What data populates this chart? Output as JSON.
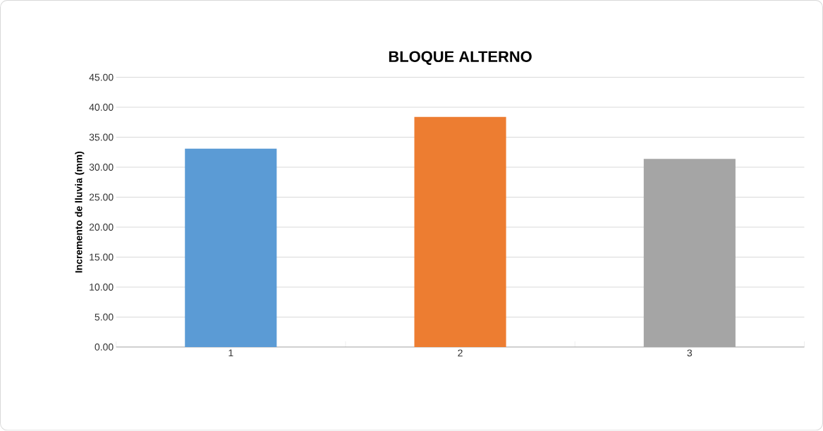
{
  "chart_data": {
    "type": "bar",
    "title": "BLOQUE ALTERNO",
    "ylabel": "Incremento de  lluvia (mm)",
    "categories": [
      "1",
      "2",
      "3"
    ],
    "values": [
      33.1,
      38.4,
      31.4
    ],
    "colors": [
      "#5b9bd5",
      "#ed7d31",
      "#a5a5a5"
    ],
    "ylim": [
      0,
      45
    ],
    "yticks": [
      {
        "value": 0,
        "label": "0.00"
      },
      {
        "value": 5,
        "label": "5.00"
      },
      {
        "value": 10,
        "label": "10.00"
      },
      {
        "value": 15,
        "label": "15.00"
      },
      {
        "value": 20,
        "label": "20.00"
      },
      {
        "value": 25,
        "label": "25.00"
      },
      {
        "value": 30,
        "label": "30.00"
      },
      {
        "value": 35,
        "label": "35.00"
      },
      {
        "value": 40,
        "label": "40.00"
      },
      {
        "value": 45,
        "label": "45.00"
      }
    ],
    "grid": "y"
  }
}
